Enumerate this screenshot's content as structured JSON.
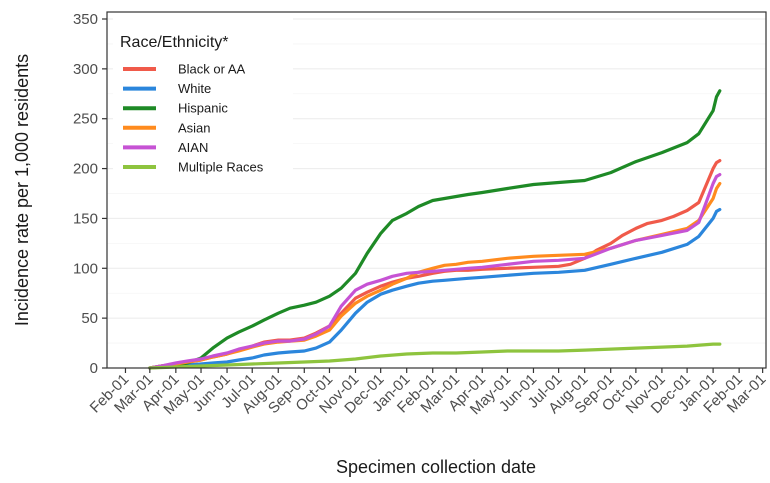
{
  "chart_data": {
    "type": "line",
    "xlabel": "Specimen collection date",
    "ylabel": "Incidence rate per 1,000 residents",
    "ylim": [
      0,
      350
    ],
    "y_ticks": [
      0,
      50,
      100,
      150,
      200,
      250,
      300,
      350
    ],
    "grid": true,
    "legend": {
      "title": "Race/Ethnicity*",
      "position": "top-left"
    },
    "x_tick_labels": [
      "Feb-01",
      "Mar-01",
      "Apr-01",
      "May-01",
      "Jun-01",
      "Jul-01",
      "Aug-01",
      "Sep-01",
      "Oct-01",
      "Nov-01",
      "Dec-01",
      "Jan-01",
      "Feb-01",
      "Mar-01",
      "Apr-01",
      "May-01",
      "Jun-01",
      "Jul-01",
      "Aug-01",
      "Sep-01",
      "Oct-01",
      "Nov-01",
      "Dec-01",
      "Jan-01",
      "Feb-01",
      "Mar-01"
    ],
    "x_tick_dates": [
      "2020-02-01",
      "2020-03-01",
      "2020-04-01",
      "2020-05-01",
      "2020-06-01",
      "2020-07-01",
      "2020-08-01",
      "2020-09-01",
      "2020-10-01",
      "2020-11-01",
      "2020-12-01",
      "2021-01-01",
      "2021-02-01",
      "2021-03-01",
      "2021-04-01",
      "2021-05-01",
      "2021-06-01",
      "2021-07-01",
      "2021-08-01",
      "2021-09-01",
      "2021-10-01",
      "2021-11-01",
      "2021-12-01",
      "2022-01-01",
      "2022-02-01",
      "2022-03-01"
    ],
    "xlim": [
      "2020-01-10",
      "2022-03-05"
    ],
    "series": [
      {
        "name": "Black or AA",
        "color": "#f05a4a",
        "x": [
          "2020-03-01",
          "2020-03-15",
          "2020-04-01",
          "2020-04-15",
          "2020-05-01",
          "2020-05-15",
          "2020-06-01",
          "2020-06-15",
          "2020-07-01",
          "2020-07-15",
          "2020-08-01",
          "2020-08-15",
          "2020-09-01",
          "2020-09-15",
          "2020-10-01",
          "2020-10-15",
          "2020-11-01",
          "2020-11-15",
          "2020-12-01",
          "2020-12-15",
          "2021-01-01",
          "2021-01-15",
          "2021-02-01",
          "2021-02-15",
          "2021-03-01",
          "2021-03-15",
          "2021-04-01",
          "2021-05-01",
          "2021-06-01",
          "2021-07-01",
          "2021-07-15",
          "2021-08-01",
          "2021-08-15",
          "2021-09-01",
          "2021-09-15",
          "2021-10-01",
          "2021-10-15",
          "2021-11-01",
          "2021-11-15",
          "2021-12-01",
          "2021-12-15",
          "2022-01-01",
          "2022-01-05",
          "2022-01-09"
        ],
        "y": [
          0,
          2,
          4,
          6,
          8,
          11,
          14,
          18,
          22,
          26,
          28,
          28,
          30,
          35,
          42,
          55,
          70,
          76,
          82,
          86,
          90,
          92,
          95,
          97,
          98,
          98,
          99,
          100,
          101,
          102,
          104,
          110,
          118,
          125,
          133,
          140,
          145,
          148,
          152,
          158,
          166,
          200,
          206,
          208
        ]
      },
      {
        "name": "White",
        "color": "#2b86dc",
        "x": [
          "2020-03-01",
          "2020-03-15",
          "2020-04-01",
          "2020-04-15",
          "2020-05-01",
          "2020-05-15",
          "2020-06-01",
          "2020-06-15",
          "2020-07-01",
          "2020-07-15",
          "2020-08-01",
          "2020-08-15",
          "2020-09-01",
          "2020-09-15",
          "2020-10-01",
          "2020-10-15",
          "2020-11-01",
          "2020-11-15",
          "2020-12-01",
          "2020-12-15",
          "2021-01-01",
          "2021-01-15",
          "2021-02-01",
          "2021-02-15",
          "2021-03-01",
          "2021-03-15",
          "2021-04-01",
          "2021-05-01",
          "2021-06-01",
          "2021-07-01",
          "2021-08-01",
          "2021-09-01",
          "2021-10-01",
          "2021-11-01",
          "2021-12-01",
          "2021-12-15",
          "2022-01-01",
          "2022-01-05",
          "2022-01-09"
        ],
        "y": [
          0,
          1,
          2,
          3,
          4,
          5,
          6,
          8,
          10,
          13,
          15,
          16,
          17,
          20,
          26,
          38,
          55,
          66,
          74,
          78,
          82,
          85,
          87,
          88,
          89,
          90,
          91,
          93,
          95,
          96,
          98,
          104,
          110,
          116,
          124,
          132,
          150,
          157,
          159
        ]
      },
      {
        "name": "Hispanic",
        "color": "#1e8a26",
        "x": [
          "2020-03-01",
          "2020-03-15",
          "2020-04-01",
          "2020-04-15",
          "2020-05-01",
          "2020-05-15",
          "2020-06-01",
          "2020-06-15",
          "2020-07-01",
          "2020-07-15",
          "2020-08-01",
          "2020-08-15",
          "2020-09-01",
          "2020-09-15",
          "2020-10-01",
          "2020-10-15",
          "2020-11-01",
          "2020-11-15",
          "2020-12-01",
          "2020-12-15",
          "2021-01-01",
          "2021-01-15",
          "2021-02-01",
          "2021-02-15",
          "2021-03-01",
          "2021-03-15",
          "2021-04-01",
          "2021-05-01",
          "2021-06-01",
          "2021-07-01",
          "2021-08-01",
          "2021-09-01",
          "2021-10-01",
          "2021-11-01",
          "2021-12-01",
          "2021-12-15",
          "2022-01-01",
          "2022-01-05",
          "2022-01-09"
        ],
        "y": [
          0,
          2,
          3,
          5,
          10,
          20,
          30,
          36,
          42,
          48,
          55,
          60,
          63,
          66,
          72,
          80,
          95,
          115,
          135,
          148,
          155,
          162,
          168,
          170,
          172,
          174,
          176,
          180,
          184,
          186,
          188,
          196,
          207,
          216,
          226,
          235,
          258,
          272,
          278
        ]
      },
      {
        "name": "Asian",
        "color": "#ff8b1e",
        "x": [
          "2020-03-01",
          "2020-03-15",
          "2020-04-01",
          "2020-04-15",
          "2020-05-01",
          "2020-05-15",
          "2020-06-01",
          "2020-06-15",
          "2020-07-01",
          "2020-07-15",
          "2020-08-01",
          "2020-08-15",
          "2020-09-01",
          "2020-09-15",
          "2020-10-01",
          "2020-10-15",
          "2020-11-01",
          "2020-11-15",
          "2020-12-01",
          "2020-12-15",
          "2021-01-01",
          "2021-01-15",
          "2021-02-01",
          "2021-02-15",
          "2021-03-01",
          "2021-03-15",
          "2021-04-01",
          "2021-05-01",
          "2021-06-01",
          "2021-07-01",
          "2021-08-01",
          "2021-09-01",
          "2021-10-01",
          "2021-11-01",
          "2021-12-01",
          "2021-12-15",
          "2022-01-01",
          "2022-01-05",
          "2022-01-09"
        ],
        "y": [
          0,
          2,
          4,
          6,
          8,
          11,
          14,
          17,
          21,
          24,
          26,
          27,
          28,
          32,
          38,
          52,
          65,
          72,
          78,
          84,
          90,
          96,
          100,
          103,
          104,
          106,
          107,
          110,
          112,
          113,
          114,
          120,
          128,
          134,
          140,
          148,
          170,
          180,
          185
        ]
      },
      {
        "name": "AIAN",
        "color": "#c653d4",
        "x": [
          "2020-03-01",
          "2020-03-15",
          "2020-04-01",
          "2020-04-15",
          "2020-05-01",
          "2020-05-15",
          "2020-06-01",
          "2020-06-15",
          "2020-07-01",
          "2020-07-15",
          "2020-08-01",
          "2020-08-15",
          "2020-09-01",
          "2020-09-15",
          "2020-10-01",
          "2020-10-15",
          "2020-11-01",
          "2020-11-15",
          "2020-12-01",
          "2020-12-15",
          "2021-01-01",
          "2021-01-15",
          "2021-02-01",
          "2021-02-15",
          "2021-03-01",
          "2021-03-15",
          "2021-04-01",
          "2021-05-01",
          "2021-06-01",
          "2021-07-01",
          "2021-08-01",
          "2021-09-01",
          "2021-10-01",
          "2021-11-01",
          "2021-12-01",
          "2021-12-15",
          "2022-01-01",
          "2022-01-05",
          "2022-01-09"
        ],
        "y": [
          0,
          2,
          5,
          7,
          9,
          12,
          15,
          19,
          22,
          25,
          27,
          27,
          29,
          34,
          42,
          62,
          78,
          84,
          88,
          92,
          95,
          96,
          97,
          98,
          99,
          100,
          101,
          104,
          107,
          108,
          110,
          120,
          128,
          133,
          138,
          146,
          185,
          192,
          194
        ]
      },
      {
        "name": "Multiple Races",
        "color": "#8ec43e",
        "x": [
          "2020-03-01",
          "2020-04-01",
          "2020-05-01",
          "2020-06-01",
          "2020-07-01",
          "2020-08-01",
          "2020-09-01",
          "2020-10-01",
          "2020-11-01",
          "2020-12-01",
          "2021-01-01",
          "2021-02-01",
          "2021-03-01",
          "2021-04-01",
          "2021-05-01",
          "2021-06-01",
          "2021-07-01",
          "2021-08-01",
          "2021-09-01",
          "2021-10-01",
          "2021-11-01",
          "2021-12-01",
          "2022-01-01",
          "2022-01-09"
        ],
        "y": [
          0,
          1,
          2,
          3,
          4,
          5,
          6,
          7,
          9,
          12,
          14,
          15,
          15,
          16,
          17,
          17,
          17,
          18,
          19,
          20,
          21,
          22,
          24,
          24
        ]
      }
    ]
  }
}
